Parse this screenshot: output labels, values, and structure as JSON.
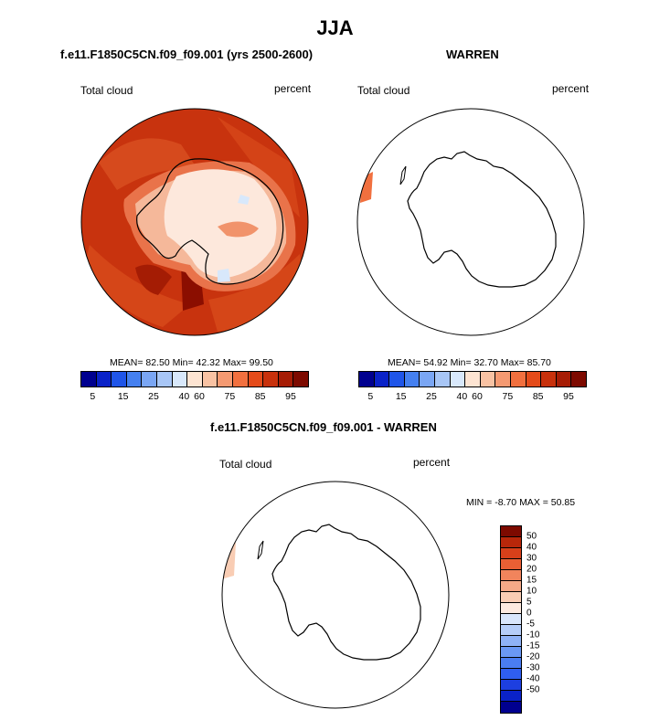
{
  "title": "JJA",
  "panel1": {
    "case": "f.e11.F1850C5CN.f09_f09.001 (yrs 2500-2600)",
    "variable": "Total cloud",
    "units": "percent",
    "stats": "MEAN=  82.50  Min=  42.32  Max=  99.50"
  },
  "panel2": {
    "case": "WARREN",
    "variable": "Total cloud",
    "units": "percent",
    "stats": "MEAN=  54.92  Min=  32.70  Max=  85.70"
  },
  "panel3": {
    "case": "f.e11.F1850C5CN.f09_f09.001 - WARREN",
    "variable": "Total cloud",
    "units": "percent",
    "stats": "MIN =  -8.70 MAX =  50.85"
  },
  "colorbar_abs": {
    "colors": [
      "#00008f",
      "#0a22c8",
      "#1f55e8",
      "#4580f0",
      "#7aa6f4",
      "#a8c6f6",
      "#d8e8fb",
      "#fde4d2",
      "#f8c2a3",
      "#f59a72",
      "#f1703f",
      "#e44b1a",
      "#c8310c",
      "#a61c05",
      "#7d0a00"
    ],
    "tick_labels": [
      "5",
      "15",
      "25",
      "40",
      "60",
      "75",
      "85",
      "95"
    ]
  },
  "colorbar_diff": {
    "colors": [
      "#00008f",
      "#0a22c8",
      "#1d3fe0",
      "#2f5ef0",
      "#4a7df2",
      "#6a98f4",
      "#8fb2f6",
      "#b5cdf8",
      "#d9e6fb",
      "#fdeadf",
      "#f9cdb4",
      "#f5a987",
      "#f1845c",
      "#ea5f34",
      "#d8401a",
      "#b8270a",
      "#7d0a00"
    ],
    "tick_labels": [
      "50",
      "40",
      "30",
      "20",
      "15",
      "10",
      "5",
      "0",
      "-5",
      "-10",
      "-15",
      "-20",
      "-30",
      "-40",
      "-50"
    ]
  },
  "maps": {
    "panel1_ocean_color": "#c8330e",
    "panel1_land_color": "#fde8dc"
  }
}
